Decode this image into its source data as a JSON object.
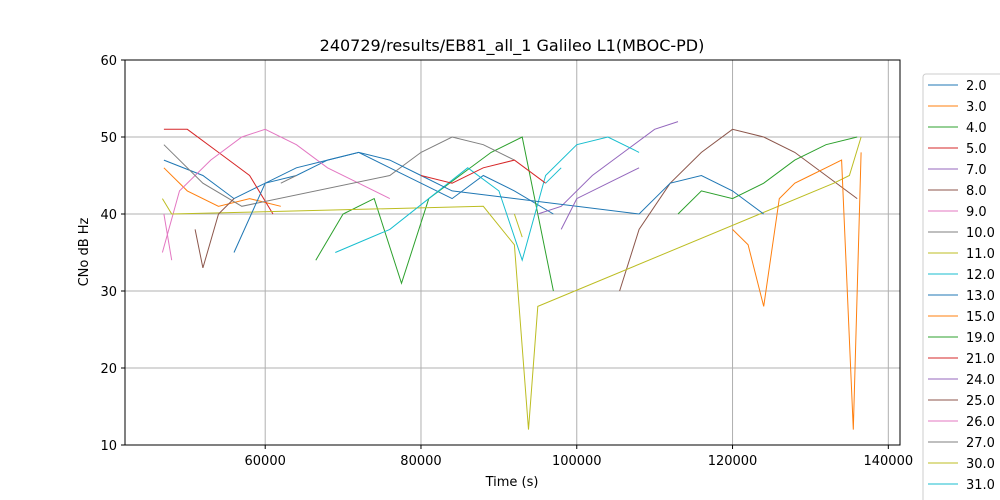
{
  "chart_data": {
    "type": "line",
    "title": "240729/results/EB81_all_1 Galileo L1(MBOC-PD)",
    "xlabel": "Time (s)",
    "ylabel": "CNo dB Hz",
    "xlim": [
      42000,
      141500
    ],
    "ylim": [
      10,
      60
    ],
    "xticks": [
      60000,
      80000,
      100000,
      120000,
      140000
    ],
    "xtick_labels": [
      "60000",
      "80000",
      "100000",
      "120000",
      "140000"
    ],
    "yticks": [
      10,
      20,
      30,
      40,
      50,
      60
    ],
    "ytick_labels": [
      "10",
      "20",
      "30",
      "40",
      "50",
      "60"
    ],
    "grid": true,
    "legend_position": "right, outside plot",
    "series": [
      {
        "name": "2.0",
        "color": "#1f77b4",
        "x": [
          47000,
          52000,
          56000,
          60000,
          64000,
          68000,
          72000,
          76000,
          80000,
          84000,
          88000,
          92000,
          97000
        ],
        "y": [
          47,
          45,
          42,
          44,
          45,
          47,
          48,
          46,
          44,
          42,
          45,
          43,
          40
        ]
      },
      {
        "name": "3.0",
        "color": "#ff7f0e",
        "x": [
          47000,
          50000,
          54000,
          58000,
          62000
        ],
        "y": [
          46,
          43,
          41,
          42,
          41
        ]
      },
      {
        "name": "4.0",
        "color": "#2ca02c",
        "x": [
          66500,
          70000,
          74000,
          77500,
          81000,
          85000,
          89000,
          93000,
          97000
        ],
        "y": [
          34,
          40,
          42,
          31,
          42,
          45,
          48,
          50,
          30
        ]
      },
      {
        "name": "5.0",
        "color": "#d62728",
        "x": [
          47000,
          50000,
          54000,
          58000,
          61000
        ],
        "y": [
          51,
          51,
          48,
          45,
          40
        ]
      },
      {
        "name": "7.0",
        "color": "#9467bd",
        "x": [
          95000,
          98000,
          102000,
          106000,
          110000,
          113000
        ],
        "y": [
          40,
          41,
          45,
          48,
          51,
          52
        ]
      },
      {
        "name": "8.0",
        "color": "#8c564b",
        "x": [
          105500,
          108000,
          112000,
          116000,
          120000,
          124000,
          128000,
          132000,
          136000
        ],
        "y": [
          30,
          38,
          44,
          48,
          51,
          50,
          48,
          45,
          42
        ]
      },
      {
        "name": "9.0",
        "color": "#e377c2",
        "x": [
          46800,
          49000,
          53000,
          57000,
          60000,
          64000,
          68000,
          72000,
          76000
        ],
        "y": [
          35,
          43,
          47,
          50,
          51,
          49,
          46,
          44,
          42
        ]
      },
      {
        "name": "10.0",
        "color": "#7f7f7f",
        "x": [
          47000,
          52000,
          57000,
          76000,
          80000,
          84000,
          88000,
          92000
        ],
        "y": [
          49,
          44,
          41,
          45,
          48,
          50,
          49,
          47
        ]
      },
      {
        "name": "11.0",
        "color": "#bcbd22",
        "x": [
          46800,
          48000,
          88000,
          92000,
          93800,
          95000,
          133000,
          135000,
          136500
        ],
        "y": [
          42,
          40,
          41,
          36,
          12,
          28,
          44,
          45,
          50
        ]
      },
      {
        "name": "12.0",
        "color": "#17becf",
        "x": [
          69000,
          76000,
          86000,
          90000,
          93000,
          96000,
          100000,
          104000,
          108000
        ],
        "y": [
          35,
          38,
          46,
          43,
          34,
          45,
          49,
          50,
          48
        ]
      },
      {
        "name": "13.0",
        "color": "#1f77b4",
        "x": [
          56000,
          60000,
          64000,
          68000,
          72000,
          76000,
          80000,
          84000,
          108000,
          112000,
          116000,
          120000,
          124000
        ],
        "y": [
          35,
          44,
          46,
          47,
          48,
          47,
          45,
          43,
          40,
          44,
          45,
          43,
          40
        ]
      },
      {
        "name": "15.0",
        "color": "#ff7f0e",
        "x": [
          120000,
          122000,
          124000,
          126000,
          128000,
          130000,
          132000,
          134000,
          135500,
          136500
        ],
        "y": [
          38,
          36,
          28,
          42,
          44,
          45,
          46,
          47,
          12,
          48
        ]
      },
      {
        "name": "19.0",
        "color": "#2ca02c",
        "x": [
          113000,
          116000,
          120000,
          124000,
          128000,
          132000,
          136000
        ],
        "y": [
          40,
          43,
          42,
          44,
          47,
          49,
          50
        ]
      },
      {
        "name": "21.0",
        "color": "#d62728",
        "x": [
          80000,
          84000,
          88000,
          92000,
          96000
        ],
        "y": [
          45,
          44,
          46,
          47,
          44
        ]
      },
      {
        "name": "24.0",
        "color": "#9467bd",
        "x": [
          98000,
          100000,
          104000,
          108000
        ],
        "y": [
          38,
          42,
          44,
          46
        ]
      },
      {
        "name": "25.0",
        "color": "#8c564b",
        "x": [
          51000,
          52000,
          54000,
          56000
        ],
        "y": [
          38,
          33,
          40,
          42
        ]
      },
      {
        "name": "26.0",
        "color": "#e377c2",
        "x": [
          47000,
          48000
        ],
        "y": [
          40,
          34
        ]
      },
      {
        "name": "27.0",
        "color": "#7f7f7f",
        "x": [
          62000,
          64000
        ],
        "y": [
          44,
          45
        ]
      },
      {
        "name": "30.0",
        "color": "#bcbd22",
        "x": [
          92000,
          93000
        ],
        "y": [
          40,
          37
        ]
      },
      {
        "name": "31.0",
        "color": "#17becf",
        "x": [
          96000,
          98000
        ],
        "y": [
          44,
          46
        ]
      }
    ]
  }
}
